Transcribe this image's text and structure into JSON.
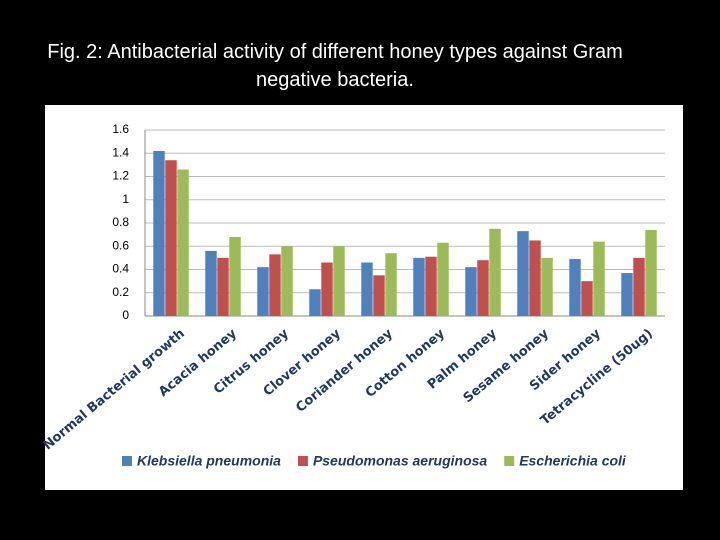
{
  "chart_data": {
    "type": "bar",
    "title": "Fig. 2: Antibacterial activity of different honey types against Gram negative bacteria.",
    "categories": [
      "Normal Bacterial growth",
      "Acacia honey",
      "Citrus honey",
      "Clover honey",
      "Coriander honey",
      "Cotton honey",
      "Palm honey",
      "Sesame honey",
      "Sider honey",
      "Tetracycline (50ug)"
    ],
    "series": [
      {
        "name": "Klebsiella pneumonia",
        "color": "#4f81bd",
        "values": [
          1.42,
          0.56,
          0.42,
          0.23,
          0.46,
          0.5,
          0.42,
          0.73,
          0.49,
          0.37
        ]
      },
      {
        "name": "Pseudomonas aeruginosa",
        "color": "#c0504d",
        "values": [
          1.34,
          0.5,
          0.53,
          0.46,
          0.35,
          0.51,
          0.48,
          0.65,
          0.3,
          0.5
        ]
      },
      {
        "name": "Escherichia coli",
        "color": "#9bbb59",
        "values": [
          1.26,
          0.68,
          0.6,
          0.6,
          0.54,
          0.63,
          0.75,
          0.5,
          0.64,
          0.74
        ]
      }
    ],
    "ylim": [
      0,
      1.6
    ],
    "yticks": [
      0,
      0.2,
      0.4,
      0.6,
      0.8,
      1,
      1.2,
      1.4,
      1.6
    ],
    "grid": true,
    "legend": "bottom"
  }
}
